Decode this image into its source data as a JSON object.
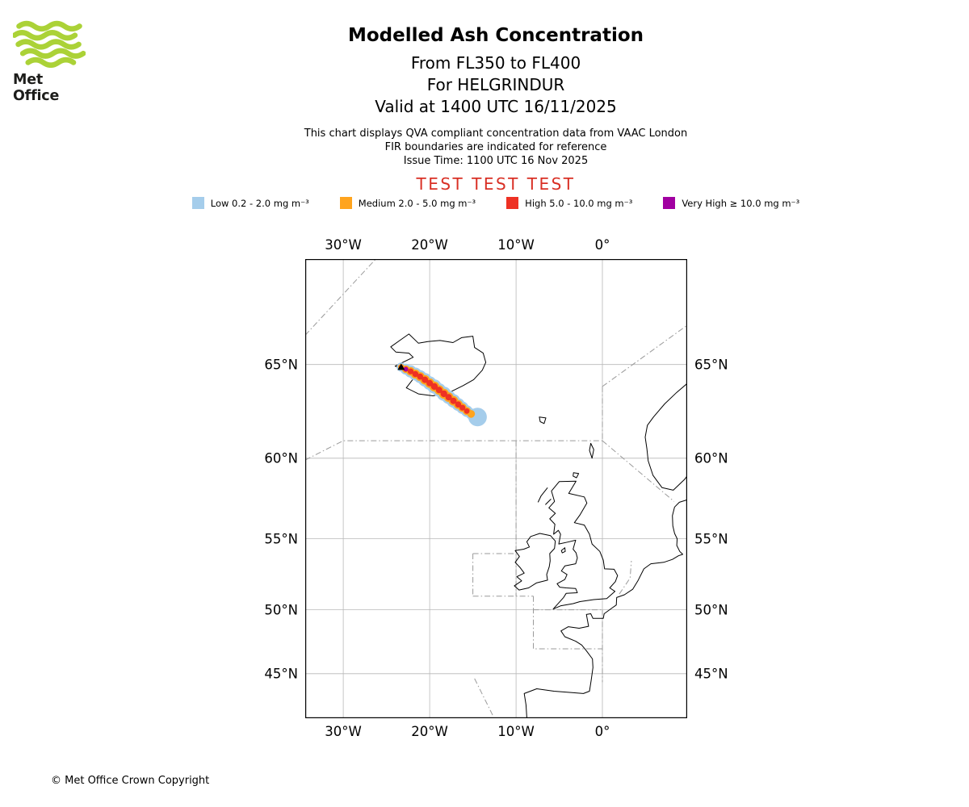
{
  "logo": {
    "brand": "Met Office"
  },
  "header": {
    "title": "Modelled Ash Concentration",
    "subtitle1": "From FL350 to FL400",
    "subtitle2": "For HELGRINDUR",
    "subtitle3": "Valid at 1400 UTC 16/11/2025"
  },
  "info": {
    "line1": "This chart displays QVA compliant concentration data from VAAC London",
    "line2": "FIR boundaries are indicated for reference",
    "line3": "Issue Time: 1100 UTC 16 Nov 2025"
  },
  "test": {
    "text": "TEST TEST TEST"
  },
  "legend": {
    "items": [
      {
        "label": "Low 0.2 - 2.0 mg m⁻³",
        "color": "#A5CDEB"
      },
      {
        "label": "Medium 2.0 - 5.0 mg m⁻³",
        "color": "#FFA41E"
      },
      {
        "label": "High 5.0 - 10.0 mg m⁻³",
        "color": "#EE3124"
      },
      {
        "label": "Very High ≥ 10.0 mg m⁻³",
        "color": "#A100A1"
      }
    ]
  },
  "footer": {
    "copyright": "© Met Office Crown Copyright"
  },
  "colors": {
    "test_text": "#D93025",
    "grid": "#B8B8B8",
    "fir": "#9A9A9A",
    "coast": "#000000",
    "map_border": "#000000",
    "logo_green": "#ABD237",
    "logo_text": "#1D1D1B",
    "text": "#000000"
  },
  "chart_data": {
    "type": "map",
    "projection": "mercator",
    "lon_range": [
      -34.4,
      9.8
    ],
    "lat_range": [
      41.2,
      69.7
    ],
    "grid": {
      "lons": [
        -30,
        -20,
        -10,
        0
      ],
      "lats": [
        65,
        60,
        55,
        50,
        45
      ],
      "lon_labels": [
        "30°W",
        "20°W",
        "10°W",
        "0°"
      ],
      "lat_labels": [
        "65°N",
        "60°N",
        "55°N",
        "50°N",
        "45°N"
      ]
    },
    "ash_plume": {
      "source": {
        "name": "HELGRINDUR",
        "lon": -23.3,
        "lat": 64.87
      },
      "valid_time": "1400 UTC 16/11/2025",
      "flight_levels": "FL350-FL400",
      "centerline": [
        [
          -23.3,
          64.87
        ],
        [
          -22.75,
          64.77
        ],
        [
          -22.2,
          64.66
        ],
        [
          -21.65,
          64.53
        ],
        [
          -21.1,
          64.4
        ],
        [
          -20.55,
          64.24
        ],
        [
          -20.0,
          64.07
        ],
        [
          -19.45,
          63.9
        ],
        [
          -18.9,
          63.72
        ],
        [
          -18.35,
          63.53
        ],
        [
          -17.8,
          63.35
        ],
        [
          -17.25,
          63.16
        ],
        [
          -16.7,
          62.97
        ],
        [
          -16.2,
          62.8
        ],
        [
          -15.7,
          62.62
        ],
        [
          -15.2,
          62.47
        ],
        [
          -14.75,
          62.35
        ]
      ],
      "width_scale": [
        0.7,
        0.85,
        0.95,
        1.0,
        1.0,
        1.05,
        1.05,
        1.1,
        1.05,
        1.1,
        1.05,
        1.05,
        1.0,
        0.95,
        0.9,
        0.85,
        0.8
      ],
      "levels": [
        {
          "name": "Low",
          "threshold": "0.2 - 2.0 mg m⁻³",
          "color": "#A5CDEB",
          "radius": 8.0,
          "end": 17,
          "tail": {
            "lon": -14.45,
            "lat": 62.3,
            "r": 11.5
          }
        },
        {
          "name": "Medium",
          "threshold": "2.0 - 5.0 mg m⁻³",
          "color": "#FFA41E",
          "radius": 5.6,
          "end": 16
        },
        {
          "name": "High",
          "threshold": "5.0 - 10.0 mg m⁻³",
          "color": "#EE3124",
          "radius": 3.8,
          "end": 15
        },
        {
          "name": "Very High",
          "threshold": "≥ 10.0 mg m⁻³",
          "color": "#A100A1",
          "radius": 3.2,
          "end": 2
        }
      ]
    },
    "coastlines": [
      {
        "name": "iceland",
        "closed": true,
        "pts": [
          [
            -22.4,
            66.45
          ],
          [
            -23.3,
            66.2
          ],
          [
            -24.5,
            65.85
          ],
          [
            -23.9,
            65.6
          ],
          [
            -22.4,
            65.55
          ],
          [
            -21.9,
            65.35
          ],
          [
            -22.9,
            65.15
          ],
          [
            -24.0,
            64.92
          ],
          [
            -23.1,
            64.78
          ],
          [
            -22.2,
            64.72
          ],
          [
            -21.7,
            64.4
          ],
          [
            -22.7,
            63.83
          ],
          [
            -21.3,
            63.52
          ],
          [
            -19.6,
            63.42
          ],
          [
            -17.6,
            63.62
          ],
          [
            -16.1,
            63.95
          ],
          [
            -14.9,
            64.25
          ],
          [
            -13.9,
            64.72
          ],
          [
            -13.5,
            65.1
          ],
          [
            -13.8,
            65.55
          ],
          [
            -14.8,
            65.82
          ],
          [
            -15.0,
            66.35
          ],
          [
            -16.3,
            66.28
          ],
          [
            -17.3,
            66.05
          ],
          [
            -18.8,
            66.15
          ],
          [
            -20.2,
            66.1
          ],
          [
            -21.3,
            66.02
          ]
        ]
      },
      {
        "name": "great-britain",
        "closed": true,
        "pts": [
          [
            -3.05,
            58.64
          ],
          [
            -3.9,
            57.9
          ],
          [
            -2.1,
            57.68
          ],
          [
            -1.8,
            57.3
          ],
          [
            -2.6,
            56.55
          ],
          [
            -3.25,
            56.05
          ],
          [
            -2.1,
            55.9
          ],
          [
            -1.5,
            55.3
          ],
          [
            -1.2,
            54.65
          ],
          [
            -0.3,
            54.15
          ],
          [
            0.1,
            53.55
          ],
          [
            0.25,
            52.95
          ],
          [
            1.35,
            52.92
          ],
          [
            1.75,
            52.48
          ],
          [
            1.5,
            52.05
          ],
          [
            0.85,
            51.6
          ],
          [
            1.45,
            51.35
          ],
          [
            0.5,
            50.82
          ],
          [
            -1.0,
            50.75
          ],
          [
            -2.6,
            50.6
          ],
          [
            -3.4,
            50.45
          ],
          [
            -4.8,
            50.3
          ],
          [
            -5.7,
            50.05
          ],
          [
            -4.5,
            50.9
          ],
          [
            -4.2,
            51.2
          ],
          [
            -2.9,
            51.25
          ],
          [
            -3.1,
            51.55
          ],
          [
            -4.2,
            51.6
          ],
          [
            -4.95,
            51.65
          ],
          [
            -5.25,
            51.9
          ],
          [
            -4.35,
            52.2
          ],
          [
            -4.1,
            52.55
          ],
          [
            -4.75,
            52.8
          ],
          [
            -4.35,
            53.15
          ],
          [
            -3.1,
            53.3
          ],
          [
            -2.9,
            53.7
          ],
          [
            -3.05,
            54.05
          ],
          [
            -3.4,
            54.3
          ],
          [
            -3.1,
            54.9
          ],
          [
            -4.0,
            54.78
          ],
          [
            -5.05,
            54.65
          ],
          [
            -4.85,
            55.3
          ],
          [
            -5.1,
            55.55
          ],
          [
            -5.65,
            55.3
          ],
          [
            -5.5,
            55.95
          ],
          [
            -6.1,
            56.3
          ],
          [
            -5.45,
            56.65
          ],
          [
            -6.2,
            57.0
          ],
          [
            -5.55,
            57.4
          ],
          [
            -5.9,
            58.05
          ],
          [
            -5.0,
            58.62
          ]
        ]
      },
      {
        "name": "ireland",
        "closed": true,
        "pts": [
          [
            -7.25,
            55.35
          ],
          [
            -6.0,
            55.2
          ],
          [
            -5.45,
            54.85
          ],
          [
            -5.55,
            54.35
          ],
          [
            -6.1,
            54.0
          ],
          [
            -6.05,
            53.5
          ],
          [
            -6.15,
            53.1
          ],
          [
            -6.45,
            52.55
          ],
          [
            -6.35,
            52.15
          ],
          [
            -7.65,
            51.95
          ],
          [
            -8.55,
            51.6
          ],
          [
            -9.65,
            51.45
          ],
          [
            -10.2,
            51.75
          ],
          [
            -9.35,
            52.1
          ],
          [
            -9.9,
            52.4
          ],
          [
            -9.05,
            52.65
          ],
          [
            -9.55,
            53.05
          ],
          [
            -10.1,
            53.4
          ],
          [
            -9.6,
            53.8
          ],
          [
            -10.1,
            54.2
          ],
          [
            -9.1,
            54.3
          ],
          [
            -8.45,
            54.45
          ],
          [
            -8.75,
            54.8
          ],
          [
            -8.3,
            55.15
          ]
        ]
      },
      {
        "name": "norway",
        "closed": false,
        "pts": [
          [
            9.8,
            64.05
          ],
          [
            8.6,
            63.6
          ],
          [
            7.2,
            63.0
          ],
          [
            5.9,
            62.3
          ],
          [
            5.2,
            61.85
          ],
          [
            4.95,
            61.2
          ],
          [
            5.15,
            60.55
          ],
          [
            5.3,
            59.85
          ],
          [
            5.85,
            59.0
          ],
          [
            6.9,
            58.25
          ],
          [
            8.2,
            58.1
          ],
          [
            9.5,
            58.75
          ],
          [
            9.8,
            58.95
          ]
        ]
      },
      {
        "name": "continental-europe",
        "closed": false,
        "pts": [
          [
            9.8,
            57.5
          ],
          [
            8.9,
            57.35
          ],
          [
            8.35,
            57.05
          ],
          [
            8.1,
            56.5
          ],
          [
            8.15,
            55.85
          ],
          [
            8.35,
            55.35
          ],
          [
            8.65,
            55.0
          ],
          [
            8.6,
            54.55
          ],
          [
            8.95,
            54.15
          ],
          [
            9.3,
            53.95
          ],
          [
            8.8,
            53.85
          ],
          [
            8.1,
            53.6
          ],
          [
            7.1,
            53.4
          ],
          [
            5.6,
            53.3
          ],
          [
            4.8,
            52.95
          ],
          [
            4.1,
            52.1
          ],
          [
            3.5,
            51.5
          ],
          [
            2.55,
            51.1
          ],
          [
            1.65,
            50.9
          ],
          [
            1.6,
            50.35
          ],
          [
            1.15,
            50.15
          ],
          [
            0.2,
            49.7
          ],
          [
            0.1,
            49.35
          ],
          [
            -1.1,
            49.35
          ],
          [
            -1.35,
            49.7
          ],
          [
            -1.85,
            49.65
          ],
          [
            -1.6,
            48.75
          ],
          [
            -2.7,
            48.6
          ],
          [
            -3.95,
            48.72
          ],
          [
            -4.8,
            48.4
          ],
          [
            -4.35,
            47.95
          ],
          [
            -3.1,
            47.6
          ],
          [
            -2.4,
            47.3
          ],
          [
            -1.85,
            46.85
          ],
          [
            -1.15,
            46.2
          ],
          [
            -1.1,
            45.5
          ],
          [
            -1.3,
            44.45
          ],
          [
            -1.5,
            43.55
          ],
          [
            -2.2,
            43.35
          ],
          [
            -3.8,
            43.45
          ],
          [
            -5.6,
            43.55
          ],
          [
            -7.6,
            43.75
          ],
          [
            -9.05,
            43.35
          ],
          [
            -8.85,
            42.4
          ],
          [
            -8.75,
            41.3
          ]
        ]
      },
      {
        "name": "faroe-islands",
        "closed": true,
        "pts": [
          [
            -7.3,
            62.3
          ],
          [
            -6.55,
            62.25
          ],
          [
            -6.75,
            61.95
          ],
          [
            -7.2,
            62.05
          ]
        ]
      },
      {
        "name": "shetland",
        "closed": true,
        "pts": [
          [
            -1.35,
            60.85
          ],
          [
            -1.0,
            60.5
          ],
          [
            -1.2,
            60.0
          ],
          [
            -1.5,
            60.45
          ]
        ]
      },
      {
        "name": "orkney",
        "closed": true,
        "pts": [
          [
            -3.35,
            59.15
          ],
          [
            -2.75,
            59.1
          ],
          [
            -3.0,
            58.85
          ],
          [
            -3.4,
            58.95
          ]
        ]
      },
      {
        "name": "outer-hebrides",
        "closed": false,
        "pts": [
          [
            -7.45,
            57.35
          ],
          [
            -7.1,
            57.75
          ],
          [
            -6.35,
            58.25
          ]
        ]
      },
      {
        "name": "skye",
        "closed": false,
        "pts": [
          [
            -6.6,
            57.2
          ],
          [
            -5.95,
            57.55
          ]
        ]
      },
      {
        "name": "isle-of-man",
        "closed": true,
        "pts": [
          [
            -4.75,
            54.2
          ],
          [
            -4.35,
            54.4
          ],
          [
            -4.3,
            54.15
          ],
          [
            -4.65,
            54.05
          ]
        ]
      }
    ],
    "fir_boundaries": [
      {
        "pts": [
          [
            -34.4,
            66.4
          ],
          [
            -26.2,
            69.7
          ]
        ]
      },
      {
        "pts": [
          [
            -34.4,
            59.9
          ],
          [
            -30,
            61
          ],
          [
            0,
            61
          ]
        ]
      },
      {
        "pts": [
          [
            0,
            63.9
          ],
          [
            0,
            61
          ]
        ]
      },
      {
        "pts": [
          [
            0,
            63.9
          ],
          [
            9.8,
            66.85
          ]
        ]
      },
      {
        "pts": [
          [
            0,
            61
          ],
          [
            8.3,
            57.4
          ]
        ]
      },
      {
        "pts": [
          [
            -10,
            61
          ],
          [
            -10,
            51
          ]
        ]
      },
      {
        "pts": [
          [
            -15,
            54
          ],
          [
            -10,
            54
          ]
        ]
      },
      {
        "pts": [
          [
            -15,
            54
          ],
          [
            -15,
            51
          ]
        ]
      },
      {
        "pts": [
          [
            -15,
            51
          ],
          [
            -8,
            51
          ]
        ]
      },
      {
        "pts": [
          [
            -8,
            51
          ],
          [
            -8,
            47
          ],
          [
            0,
            47
          ]
        ]
      },
      {
        "pts": [
          [
            -8,
            50
          ],
          [
            0,
            50
          ]
        ]
      },
      {
        "pts": [
          [
            0,
            50
          ],
          [
            0,
            44.3
          ]
        ]
      },
      {
        "pts": [
          [
            -14.8,
            44.6
          ],
          [
            -12.6,
            41.35
          ]
        ]
      },
      {
        "pts": [
          [
            1.95,
            51.15
          ],
          [
            3.2,
            52.3
          ],
          [
            3.35,
            53.5
          ]
        ]
      }
    ]
  }
}
